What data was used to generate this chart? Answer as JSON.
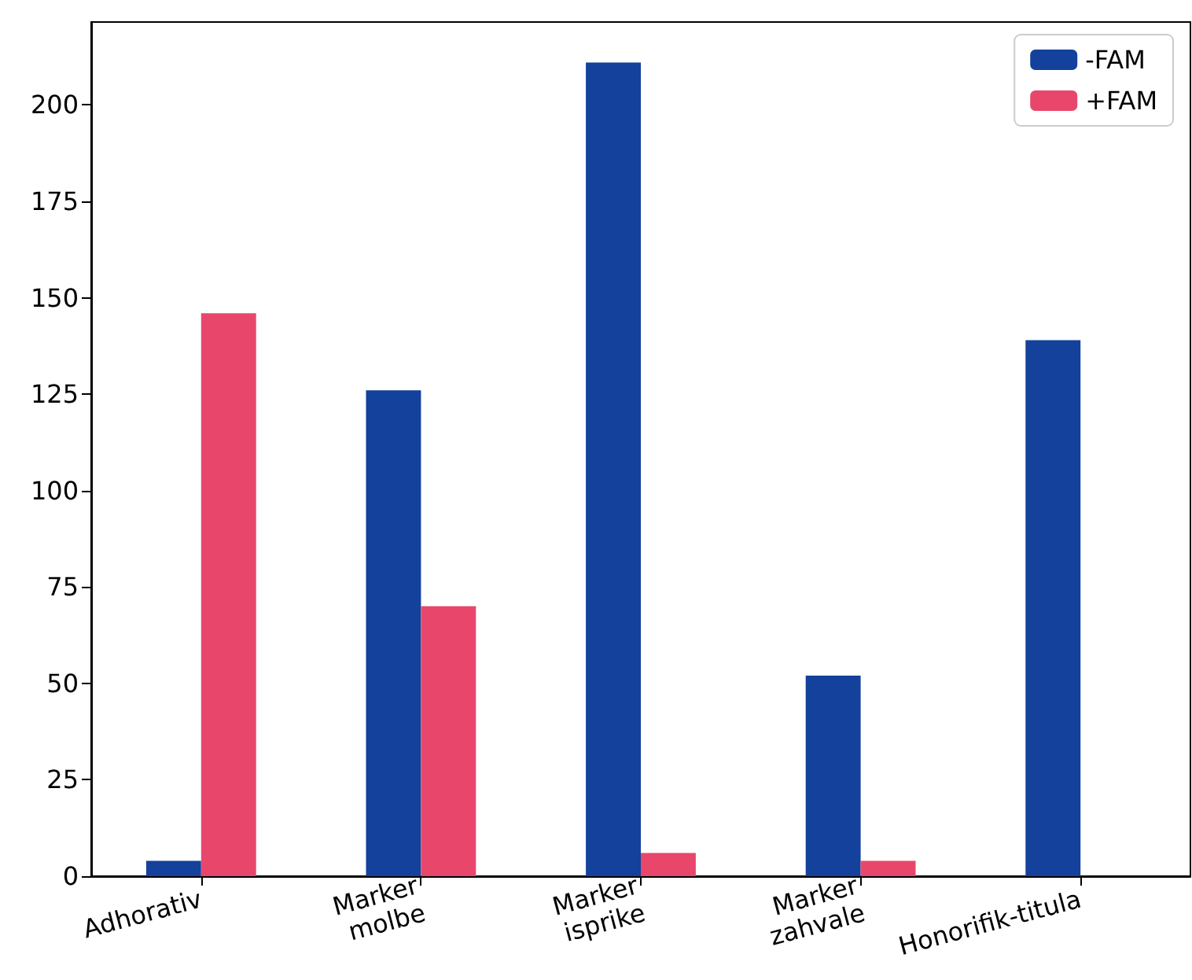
{
  "chart_data": {
    "type": "bar",
    "categories": [
      "Adhorativ",
      "Marker\nmolbe",
      "Marker\nisprike",
      "Marker\nzahvale",
      "Honorifik-titula"
    ],
    "series": [
      {
        "name": "-FAM",
        "color": "#13419b",
        "values": [
          4,
          126,
          211,
          52,
          139
        ]
      },
      {
        "name": "+FAM",
        "color": "#e8476b",
        "values": [
          146,
          70,
          6,
          4,
          0
        ]
      }
    ],
    "ylim": [
      0,
      221.5
    ],
    "yticks": [
      0,
      25,
      50,
      75,
      100,
      125,
      150,
      175,
      200
    ],
    "grid": false,
    "legend": "top right"
  }
}
